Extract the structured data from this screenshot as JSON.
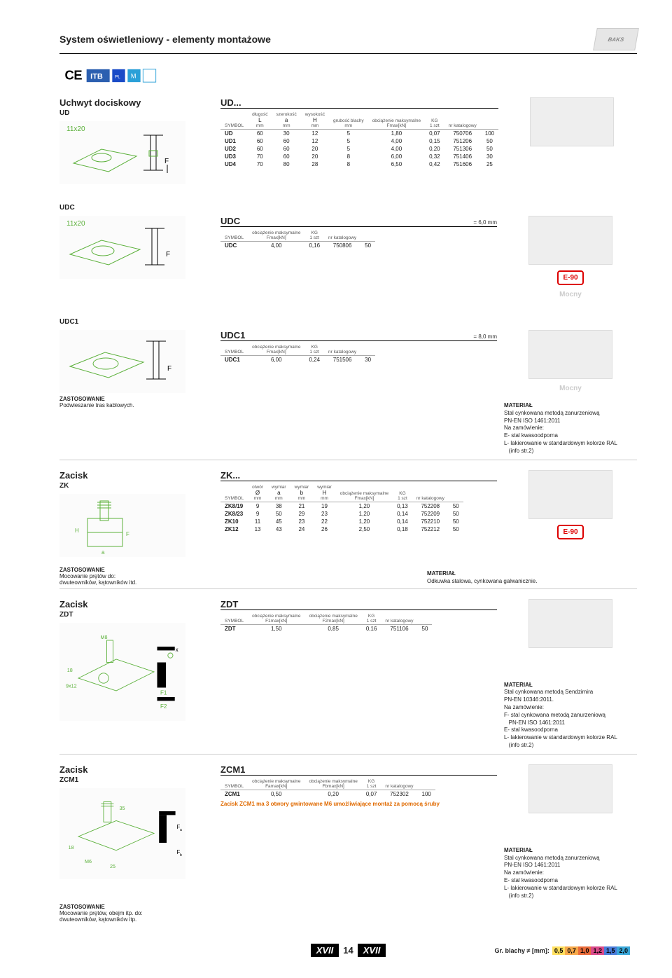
{
  "header": {
    "title": "System oświetleniowy - elementy montażowe",
    "logo": "BAKS"
  },
  "cert_badges": [
    "CE",
    "ITB",
    "PL",
    "M"
  ],
  "ud": {
    "title": "Uchwyt dociskowy",
    "code": "UD",
    "table_title": "UD...",
    "headers": [
      {
        "top": "",
        "bot": "SYMBOL"
      },
      {
        "top": "długość",
        "mid": "L",
        "bot": "mm"
      },
      {
        "top": "szerokość",
        "mid": "a",
        "bot": "mm"
      },
      {
        "top": "wysokość",
        "mid": "H",
        "bot": "mm"
      },
      {
        "top": "grubość blachy",
        "mid": "",
        "bot": "mm"
      },
      {
        "top": "obciążenie maksymalne",
        "mid": "",
        "bot": "Fmax[kN]"
      },
      {
        "top": "KG",
        "mid": "",
        "bot": "1 szt"
      },
      {
        "top": "nr katalogowy",
        "mid": "",
        "bot": ""
      },
      {
        "top": "",
        "mid": "",
        "bot": ""
      }
    ],
    "rows": [
      [
        "UD",
        "60",
        "30",
        "12",
        "5",
        "1,80",
        "0,07",
        "750706",
        "100"
      ],
      [
        "UD1",
        "60",
        "60",
        "12",
        "5",
        "4,00",
        "0,15",
        "751206",
        "50"
      ],
      [
        "UD2",
        "60",
        "60",
        "20",
        "5",
        "4,00",
        "0,20",
        "751306",
        "50"
      ],
      [
        "UD3",
        "70",
        "60",
        "20",
        "8",
        "6,00",
        "0,32",
        "751406",
        "30"
      ],
      [
        "UD4",
        "70",
        "80",
        "28",
        "8",
        "6,50",
        "0,42",
        "751606",
        "25"
      ]
    ]
  },
  "udc": {
    "code": "UDC",
    "table_title": "UDC",
    "thick_note": "= 6,0 mm",
    "headers": [
      {
        "bot": "SYMBOL"
      },
      {
        "top": "obciążenie maksymalne",
        "bot": "Fmax[kN]"
      },
      {
        "top": "KG",
        "bot": "1 szt"
      },
      {
        "top": "nr katalogowy",
        "bot": ""
      },
      {
        "bot": ""
      }
    ],
    "rows": [
      [
        "UDC",
        "4,00",
        "0,16",
        "750806",
        "50"
      ]
    ]
  },
  "udc1": {
    "code": "UDC1",
    "table_title": "UDC1",
    "thick_note": "= 8,0 mm",
    "headers": [
      {
        "bot": "SYMBOL"
      },
      {
        "top": "obciążenie maksymalne",
        "bot": "Fmax[kN]"
      },
      {
        "top": "KG",
        "bot": "1 szt"
      },
      {
        "top": "nr katalogowy",
        "bot": ""
      },
      {
        "bot": ""
      }
    ],
    "rows": [
      [
        "UDC1",
        "6,00",
        "0,24",
        "751506",
        "30"
      ]
    ],
    "zast_title": "ZASTOSOWANIE",
    "zast_text": "Podwieszanie tras kablowych.",
    "mat_title": "MATERIAŁ",
    "mat_lines": [
      "Stal cynkowana metodą zanurzeniową",
      "PN-EN ISO 1461:2011",
      "Na zamówienie:",
      "E- stal kwasoodporna",
      "L- lakierowanie w standardowym kolorze RAL",
      "   (info str.2)"
    ]
  },
  "zk": {
    "title": "Zacisk",
    "code": "ZK",
    "table_title": "ZK...",
    "headers": [
      {
        "bot": "SYMBOL"
      },
      {
        "top": "otwór",
        "mid": "Ø",
        "bot": "mm"
      },
      {
        "top": "wymiar",
        "mid": "a",
        "bot": "mm"
      },
      {
        "top": "wymiar",
        "mid": "b",
        "bot": "mm"
      },
      {
        "top": "wymiar",
        "mid": "H",
        "bot": "mm"
      },
      {
        "top": "obciążenie maksymalne",
        "bot": "Fmax[kN]"
      },
      {
        "top": "KG",
        "bot": "1 szt"
      },
      {
        "top": "nr katalogowy",
        "bot": ""
      },
      {
        "bot": ""
      }
    ],
    "rows": [
      [
        "ZK8/19",
        "9",
        "38",
        "21",
        "19",
        "1,20",
        "0,13",
        "752208",
        "50"
      ],
      [
        "ZK8/23",
        "9",
        "50",
        "29",
        "23",
        "1,20",
        "0,14",
        "752209",
        "50"
      ],
      [
        "ZK10",
        "11",
        "45",
        "23",
        "22",
        "1,20",
        "0,14",
        "752210",
        "50"
      ],
      [
        "ZK12",
        "13",
        "43",
        "24",
        "26",
        "2,50",
        "0,18",
        "752212",
        "50"
      ]
    ],
    "zast_title": "ZASTOSOWANIE",
    "zast_lines": [
      "Mocowanie prętów do:",
      "dwuteowników, kątowników itd."
    ],
    "mat_title": "MATERIAŁ",
    "mat_text": "Odkuwka stalowa, cynkowana galwanicznie."
  },
  "zdt": {
    "title": "Zacisk",
    "code": "ZDT",
    "table_title": "ZDT",
    "headers": [
      {
        "bot": "SYMBOL"
      },
      {
        "top": "obciążenie maksymalne",
        "bot": "F1max[kN]"
      },
      {
        "top": "obciążenie maksymalne",
        "bot": "F2max[kN]"
      },
      {
        "top": "KG",
        "bot": "1 szt"
      },
      {
        "top": "nr katalogowy",
        "bot": ""
      },
      {
        "bot": ""
      }
    ],
    "rows": [
      [
        "ZDT",
        "1,50",
        "0,85",
        "0,16",
        "751106",
        "50"
      ]
    ],
    "mat_title": "MATERIAŁ",
    "mat_lines": [
      "Stal cynkowana metodą Sendzimira",
      "PN-EN 10346:2011.",
      "Na zamówienie:",
      "F- stal cynkowana metodą zanurzeniową",
      "   PN-EN ISO 1461:2011",
      "E- stal kwasoodporna",
      "L- lakierowanie w standardowym kolorze RAL",
      "   (info str.2)"
    ]
  },
  "zcm1": {
    "title": "Zacisk",
    "code": "ZCM1",
    "table_title": "ZCM1",
    "headers": [
      {
        "bot": "SYMBOL"
      },
      {
        "top": "obciążenie maksymalne",
        "bot": "Famax[kN]"
      },
      {
        "top": "obciążenie maksymalne",
        "bot": "Fbmax[kN]"
      },
      {
        "top": "KG",
        "bot": "1 szt"
      },
      {
        "top": "nr katalogowy",
        "bot": ""
      },
      {
        "bot": ""
      }
    ],
    "rows": [
      [
        "ZCM1",
        "0,50",
        "0,20",
        "0,07",
        "752302",
        "100"
      ]
    ],
    "note": "Zacisk ZCM1 ma 3 otwory gwintowane M6 umożliwiające montaż za pomocą śruby",
    "zast_title": "ZASTOSOWANIE",
    "zast_lines": [
      "Mocowanie prętów, obejm itp. do:",
      "dwuteowników, kątowników itp."
    ],
    "mat_title": "MATERIAŁ",
    "mat_lines": [
      "Stal cynkowana metodą zanurzeniową",
      "PN-EN ISO 1461:2011",
      "Na zamówienie:",
      "E- stal kwasoodporna",
      "L- lakierowanie w standardowym kolorze RAL",
      "   (info str.2)"
    ]
  },
  "footer": {
    "roman": "XVII",
    "page": "14"
  },
  "gr_blachy": {
    "label": "Gr. blachy ≠ [mm]:",
    "chips": [
      {
        "text": "0,5",
        "bg": "#ffdf5e"
      },
      {
        "text": "0,7",
        "bg": "#f7a94a"
      },
      {
        "text": "1,0",
        "bg": "#e96b3a"
      },
      {
        "text": "1,2",
        "bg": "#d94a8a"
      },
      {
        "text": "1,5",
        "bg": "#4a7bd9"
      },
      {
        "text": "2,0",
        "bg": "#3aa7d9"
      }
    ]
  },
  "diag_labels": {
    "ud": "11x20",
    "udc": "11x20"
  }
}
